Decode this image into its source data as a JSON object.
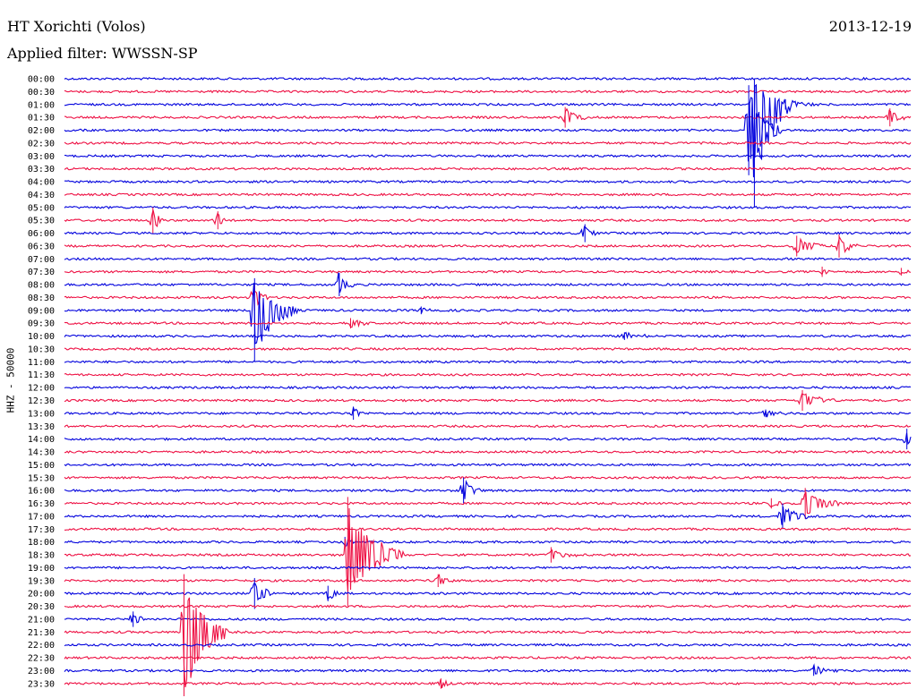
{
  "header": {
    "station": "HT Xorichti (Volos)",
    "date": "2013-12-19",
    "filter": "Applied filter: WWSSN-SP",
    "channel": "HHZ - 50000"
  },
  "colors": {
    "even_row": "#0000dd",
    "odd_row": "#ee1144",
    "text": "#000000"
  },
  "chart_data": {
    "type": "line",
    "title": "HT Xorichti (Volos)",
    "subtitle": "Applied filter: WWSSN-SP",
    "ylabel": "HHZ - 50000",
    "rows": [
      "00:00",
      "00:30",
      "01:00",
      "01:30",
      "02:00",
      "02:30",
      "03:00",
      "03:30",
      "04:00",
      "04:30",
      "05:00",
      "05:30",
      "06:00",
      "06:30",
      "07:00",
      "07:30",
      "08:00",
      "08:30",
      "09:00",
      "09:30",
      "10:00",
      "10:30",
      "11:00",
      "11:30",
      "12:00",
      "12:30",
      "13:00",
      "13:30",
      "14:00",
      "14:30",
      "15:00",
      "15:30",
      "16:00",
      "16:30",
      "17:00",
      "17:30",
      "18:00",
      "18:30",
      "19:00",
      "19:30",
      "20:00",
      "20:30",
      "21:00",
      "21:30",
      "22:00",
      "22:30",
      "23:00",
      "23:30"
    ],
    "x_unit": "minutes within each 30-minute row",
    "xlim": [
      0,
      30
    ],
    "events": [
      {
        "row": 2,
        "minute": 24.4,
        "up": 2.0,
        "down": 8.0,
        "dur": 1.4
      },
      {
        "row": 4,
        "minute": 24.2,
        "up": 3.5,
        "down": 3.5,
        "dur": 1.2
      },
      {
        "row": 3,
        "minute": 17.7,
        "up": 0.8,
        "down": 0.8,
        "dur": 0.8
      },
      {
        "row": 3,
        "minute": 29.2,
        "up": 0.7,
        "down": 0.7,
        "dur": 0.6
      },
      {
        "row": 2,
        "minute": 25.5,
        "up": 0.4,
        "down": 0.4,
        "dur": 1.5
      },
      {
        "row": 11,
        "minute": 3.1,
        "up": 1.0,
        "down": 1.0,
        "dur": 0.4
      },
      {
        "row": 11,
        "minute": 5.4,
        "up": 0.7,
        "down": 0.7,
        "dur": 0.3
      },
      {
        "row": 12,
        "minute": 18.4,
        "up": 0.7,
        "down": 0.7,
        "dur": 0.4
      },
      {
        "row": 13,
        "minute": 25.9,
        "up": 0.8,
        "down": 0.8,
        "dur": 1.0
      },
      {
        "row": 13,
        "minute": 27.4,
        "up": 0.9,
        "down": 0.9,
        "dur": 0.8
      },
      {
        "row": 15,
        "minute": 26.8,
        "up": 0.4,
        "down": 0.4,
        "dur": 0.4
      },
      {
        "row": 15,
        "minute": 29.6,
        "up": 0.3,
        "down": 0.3,
        "dur": 0.3
      },
      {
        "row": 16,
        "minute": 9.7,
        "up": 0.9,
        "down": 0.9,
        "dur": 0.6
      },
      {
        "row": 18,
        "minute": 6.7,
        "up": 2.5,
        "down": 4.0,
        "dur": 1.6
      },
      {
        "row": 17,
        "minute": 6.7,
        "up": 1.0,
        "down": 1.0,
        "dur": 0.5
      },
      {
        "row": 19,
        "minute": 10.1,
        "up": 0.4,
        "down": 0.4,
        "dur": 0.8
      },
      {
        "row": 18,
        "minute": 12.6,
        "up": 0.3,
        "down": 0.3,
        "dur": 0.6
      },
      {
        "row": 20,
        "minute": 19.8,
        "up": 0.3,
        "down": 0.3,
        "dur": 1.0
      },
      {
        "row": 25,
        "minute": 26.1,
        "up": 0.8,
        "down": 0.8,
        "dur": 1.2
      },
      {
        "row": 26,
        "minute": 10.2,
        "up": 0.5,
        "down": 0.5,
        "dur": 0.4
      },
      {
        "row": 26,
        "minute": 24.8,
        "up": 0.3,
        "down": 0.3,
        "dur": 0.8
      },
      {
        "row": 28,
        "minute": 29.8,
        "up": 0.8,
        "down": 0.8,
        "dur": 0.4
      },
      {
        "row": 32,
        "minute": 14.1,
        "up": 1.0,
        "down": 1.0,
        "dur": 0.6
      },
      {
        "row": 33,
        "minute": 26.2,
        "up": 1.2,
        "down": 1.2,
        "dur": 1.3
      },
      {
        "row": 34,
        "minute": 25.4,
        "up": 1.0,
        "down": 1.0,
        "dur": 1.0
      },
      {
        "row": 33,
        "minute": 25.0,
        "up": 0.4,
        "down": 0.4,
        "dur": 0.6
      },
      {
        "row": 37,
        "minute": 10.0,
        "up": 4.5,
        "down": 4.0,
        "dur": 2.0
      },
      {
        "row": 37,
        "minute": 17.2,
        "up": 0.6,
        "down": 0.6,
        "dur": 1.0
      },
      {
        "row": 36,
        "minute": 9.9,
        "up": 0.4,
        "down": 0.4,
        "dur": 0.6
      },
      {
        "row": 39,
        "minute": 13.2,
        "up": 0.5,
        "down": 0.5,
        "dur": 0.6
      },
      {
        "row": 40,
        "minute": 6.7,
        "up": 1.2,
        "down": 1.2,
        "dur": 0.8
      },
      {
        "row": 40,
        "minute": 9.3,
        "up": 0.6,
        "down": 0.6,
        "dur": 0.6
      },
      {
        "row": 42,
        "minute": 2.4,
        "up": 0.6,
        "down": 0.6,
        "dur": 0.5
      },
      {
        "row": 43,
        "minute": 4.2,
        "up": 4.5,
        "down": 5.5,
        "dur": 1.6
      },
      {
        "row": 46,
        "minute": 26.5,
        "up": 0.4,
        "down": 0.4,
        "dur": 0.9
      },
      {
        "row": 47,
        "minute": 13.3,
        "up": 0.4,
        "down": 0.4,
        "dur": 0.4
      }
    ]
  }
}
